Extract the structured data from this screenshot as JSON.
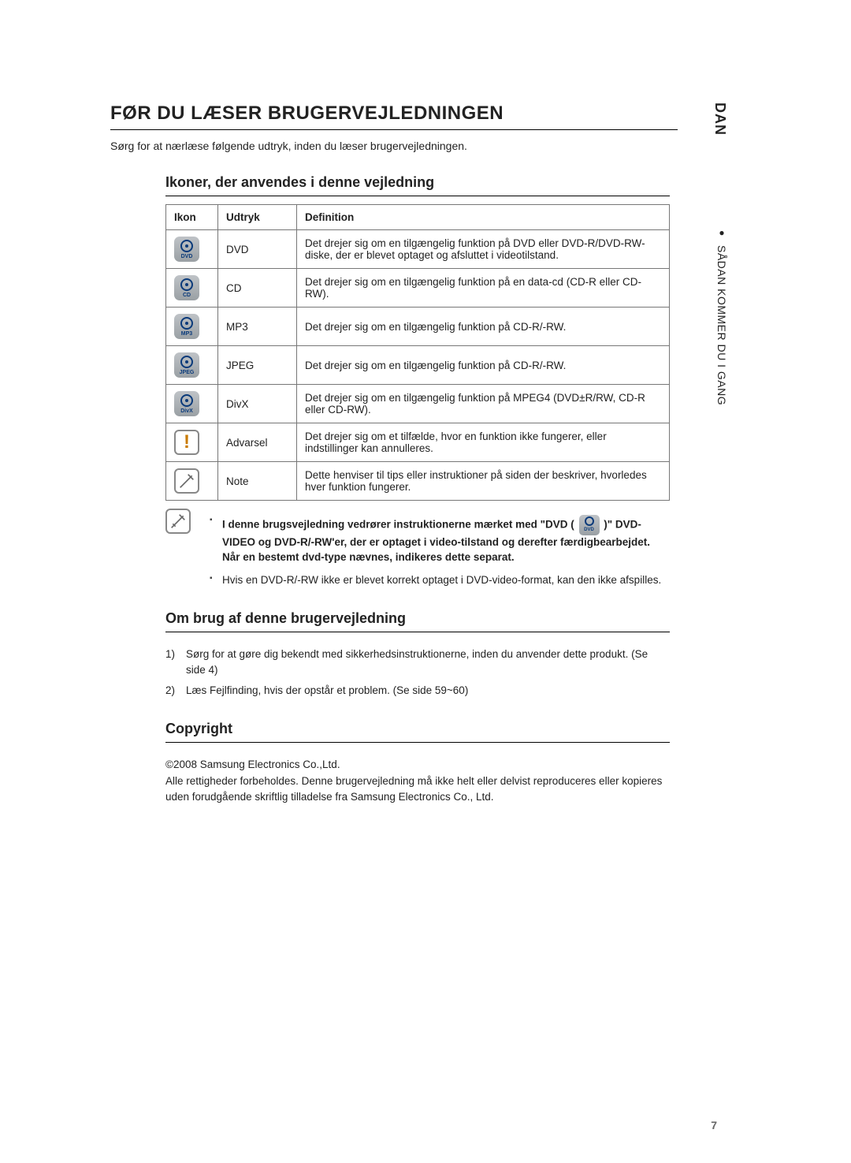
{
  "lang_tag": "DAN",
  "side_tab": "SÅDAN KOMMER DU I GANG",
  "main_title": "FØR DU LÆSER BRUGERVEJLEDNINGEN",
  "intro": "Sørg for at nærlæse følgende udtryk, inden du læser brugervejledningen.",
  "section1_title": "Ikoner, der anvendes i denne vejledning",
  "table": {
    "headers": {
      "ikon": "Ikon",
      "udtryk": "Udtryk",
      "definition": "Definition"
    },
    "rows": [
      {
        "icon_label": "DVD",
        "udtryk": "DVD",
        "definition": "Det drejer sig om en tilgængelig funktion på DVD eller DVD-R/DVD-RW-diske, der er blevet optaget og afsluttet i videotilstand."
      },
      {
        "icon_label": "CD",
        "udtryk": "CD",
        "definition": "Det drejer sig om en tilgængelig funktion på en data-cd (CD-R eller CD-RW)."
      },
      {
        "icon_label": "MP3",
        "udtryk": "MP3",
        "definition": "Det drejer sig om en tilgængelig funktion på CD-R/-RW."
      },
      {
        "icon_label": "JPEG",
        "udtryk": "JPEG",
        "definition": "Det drejer sig om en tilgængelig funktion på CD-R/-RW."
      },
      {
        "icon_label": "DivX",
        "udtryk": "DivX",
        "definition": "Det drejer sig om en tilgængelig funktion på MPEG4 (DVD±R/RW, CD-R eller CD-RW)."
      },
      {
        "icon_type": "warn",
        "udtryk": "Advarsel",
        "definition": "Det drejer sig om et tilfælde, hvor en funktion ikke fungerer, eller indstillinger kan annulleres."
      },
      {
        "icon_type": "note",
        "udtryk": "Note",
        "definition": "Dette henviser til tips eller instruktioner på siden der beskriver, hvorledes hver funktion fungerer."
      }
    ]
  },
  "note_block": {
    "bullet1_part1": "I denne brugsvejledning vedrører instruktionerne mærket med  \"DVD (",
    "bullet1_part2": ")\" DVD-VIDEO og DVD-R/-RW'er, der er optaget i video-tilstand og derefter færdigbearbejdet.",
    "bullet1_line2": "Når en bestemt dvd-type nævnes, indikeres dette separat.",
    "bullet2": "Hvis en DVD-R/-RW ikke er blevet korrekt optaget i DVD-video-format, kan den ikke afspilles.",
    "inline_icon_label": "DVD"
  },
  "section2_title": "Om brug af denne brugervejledning",
  "usage_list": [
    {
      "num": "1)",
      "text": "Sørg for at gøre dig bekendt med sikkerhedsinstruktionerne, inden du anvender dette produkt. (Se side 4)"
    },
    {
      "num": "2)",
      "text": "Læs Fejlfinding, hvis der opstår et problem. (Se side 59~60)"
    }
  ],
  "section3_title": "Copyright",
  "copyright": {
    "line1": "©2008 Samsung Electronics Co.,Ltd.",
    "line2": "Alle rettigheder forbeholdes. Denne brugervejledning må ikke helt eller delvist reproduceres eller kopieres uden forudgående skriftlig tilladelse fra Samsung Electronics Co., Ltd."
  },
  "page_number": "7",
  "colors": {
    "text": "#222222",
    "icon_bg_top": "#bfc3c7",
    "icon_bg_bottom": "#9aa0a4",
    "icon_fg": "#0a3a7a",
    "warn_color": "#c97a00",
    "border": "#777777",
    "pagenum": "#666666"
  }
}
